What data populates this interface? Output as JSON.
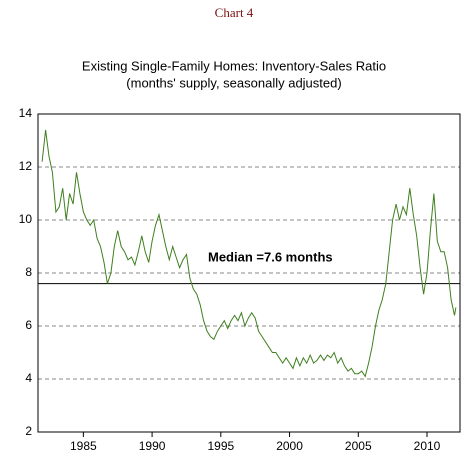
{
  "chart_data": {
    "type": "line",
    "header": "Chart 4",
    "title": "Existing Single-Family Homes:  Inventory-Sales Ratio",
    "subtitle": "(months' supply, seasonally adjusted)",
    "annotation": "Median =7.6 months",
    "median": 7.6,
    "x": [
      1982.0,
      1982.25,
      1982.5,
      1982.75,
      1983.0,
      1983.25,
      1983.5,
      1983.75,
      1984.0,
      1984.25,
      1984.5,
      1984.75,
      1985.0,
      1985.25,
      1985.5,
      1985.75,
      1986.0,
      1986.25,
      1986.5,
      1986.75,
      1987.0,
      1987.25,
      1987.5,
      1987.75,
      1988.0,
      1988.25,
      1988.5,
      1988.75,
      1989.0,
      1989.25,
      1989.5,
      1989.75,
      1990.0,
      1990.25,
      1990.5,
      1990.75,
      1991.0,
      1991.25,
      1991.5,
      1991.75,
      1992.0,
      1992.25,
      1992.5,
      1992.75,
      1993.0,
      1993.25,
      1993.5,
      1993.75,
      1994.0,
      1994.25,
      1994.5,
      1994.75,
      1995.0,
      1995.25,
      1995.5,
      1995.75,
      1996.0,
      1996.25,
      1996.5,
      1996.75,
      1997.0,
      1997.25,
      1997.5,
      1997.75,
      1998.0,
      1998.25,
      1998.5,
      1998.75,
      1999.0,
      1999.25,
      1999.5,
      1999.75,
      2000.0,
      2000.25,
      2000.5,
      2000.75,
      2001.0,
      2001.25,
      2001.5,
      2001.75,
      2002.0,
      2002.25,
      2002.5,
      2002.75,
      2003.0,
      2003.25,
      2003.5,
      2003.75,
      2004.0,
      2004.25,
      2004.5,
      2004.75,
      2005.0,
      2005.25,
      2005.5,
      2005.75,
      2006.0,
      2006.25,
      2006.5,
      2006.75,
      2007.0,
      2007.25,
      2007.5,
      2007.75,
      2008.0,
      2008.25,
      2008.5,
      2008.75,
      2009.0,
      2009.25,
      2009.5,
      2009.75,
      2010.0,
      2010.25,
      2010.5,
      2010.75,
      2011.0,
      2011.25,
      2011.5,
      2011.75,
      2012.0,
      2012.1
    ],
    "series": [
      {
        "name": "Inventory-Sales Ratio",
        "color": "#3f7f1f",
        "values": [
          12.2,
          13.4,
          12.4,
          11.8,
          10.3,
          10.5,
          11.2,
          10.0,
          11.0,
          10.6,
          11.8,
          11.0,
          10.3,
          10.0,
          9.8,
          10.0,
          9.3,
          9.0,
          8.4,
          7.6,
          8.0,
          9.0,
          9.6,
          9.0,
          8.8,
          8.5,
          8.6,
          8.3,
          8.8,
          9.4,
          8.8,
          8.4,
          9.2,
          9.8,
          10.2,
          9.6,
          9.0,
          8.5,
          9.0,
          8.6,
          8.2,
          8.5,
          8.7,
          7.8,
          7.4,
          7.2,
          6.8,
          6.2,
          5.8,
          5.6,
          5.5,
          5.8,
          6.0,
          6.2,
          5.9,
          6.2,
          6.4,
          6.2,
          6.5,
          6.0,
          6.3,
          6.5,
          6.3,
          5.8,
          5.6,
          5.4,
          5.2,
          5.0,
          5.0,
          4.8,
          4.6,
          4.8,
          4.6,
          4.4,
          4.8,
          4.5,
          4.8,
          4.6,
          4.9,
          4.6,
          4.7,
          4.9,
          4.7,
          4.9,
          4.8,
          5.0,
          4.6,
          4.8,
          4.5,
          4.3,
          4.4,
          4.2,
          4.2,
          4.3,
          4.1,
          4.6,
          5.2,
          6.0,
          6.6,
          7.0,
          7.6,
          8.8,
          10.0,
          10.6,
          10.0,
          10.5,
          10.2,
          11.2,
          10.2,
          9.4,
          8.2,
          7.2,
          8.0,
          9.6,
          11.0,
          9.2,
          8.8,
          8.8,
          8.2,
          7.0,
          6.4,
          6.7
        ]
      }
    ],
    "xlim": [
      1981.7,
      2012.4
    ],
    "xticks": [
      1985,
      1990,
      1995,
      2000,
      2005,
      2010
    ],
    "ylim": [
      2,
      14
    ],
    "yticks": [
      2,
      4,
      6,
      8,
      10,
      12,
      14
    ],
    "grid": true
  }
}
